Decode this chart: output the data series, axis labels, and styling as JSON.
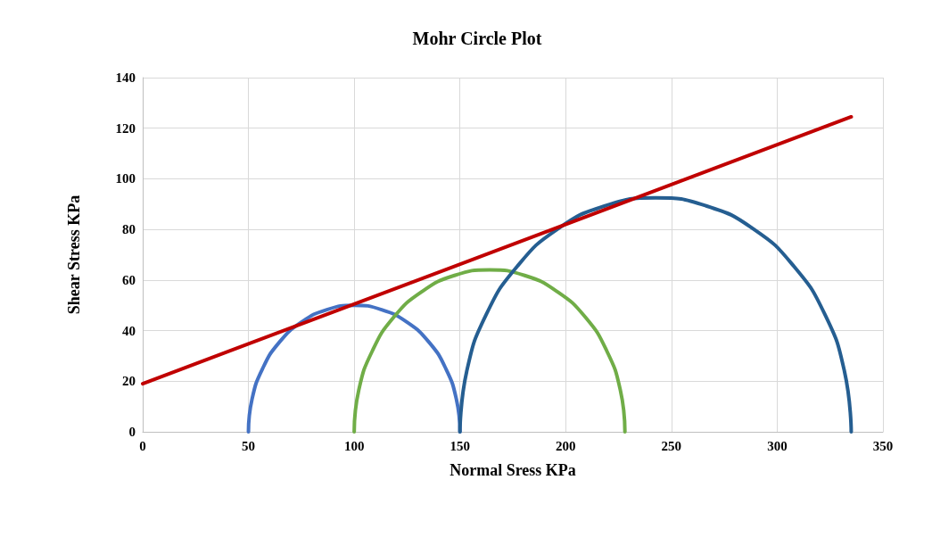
{
  "chart_data": {
    "type": "line",
    "title": "Mohr Circle Plot",
    "xlabel": "Normal Sress KPa",
    "ylabel": "Shear Stress KPa",
    "xlim": [
      0,
      350
    ],
    "xticks": [
      0,
      50,
      100,
      150,
      200,
      250,
      300,
      350
    ],
    "ylim": [
      0,
      140
    ],
    "yticks": [
      0,
      20,
      40,
      60,
      80,
      100,
      120,
      140
    ],
    "grid": true,
    "marker": "none",
    "line_style": "solid",
    "series": [
      {
        "color": "#4472c4",
        "x": [
          50,
          51.7,
          56.7,
          64.6,
          75,
          87.1,
          100,
          112.9,
          125,
          135.4,
          143.3,
          148.3,
          150
        ],
        "values": [
          0,
          12.9,
          25,
          35.4,
          43.3,
          48.3,
          50,
          48.3,
          43.3,
          35.4,
          25,
          12.9,
          0
        ]
      },
      {
        "color": "#70ad47",
        "x": [
          100,
          102.2,
          108.6,
          118.7,
          132,
          147.4,
          164,
          180.6,
          196,
          209.3,
          219.4,
          225.8,
          228
        ],
        "values": [
          0,
          16.6,
          32,
          45.3,
          55.4,
          61.8,
          64,
          61.8,
          55.4,
          45.3,
          32,
          16.6,
          0
        ]
      },
      {
        "color": "#255e91",
        "x": [
          150,
          153.2,
          162.4,
          177.1,
          196.1,
          218.6,
          242.5,
          266.4,
          288.9,
          307.9,
          322.6,
          331.8,
          335
        ],
        "values": [
          0,
          23.9,
          46.3,
          65.4,
          80.1,
          89.3,
          92.5,
          89.3,
          80.1,
          65.4,
          46.3,
          23.9,
          0
        ]
      },
      {
        "color": "#c00000",
        "x": [
          0,
          335
        ],
        "values": [
          19,
          124.5
        ]
      }
    ]
  }
}
